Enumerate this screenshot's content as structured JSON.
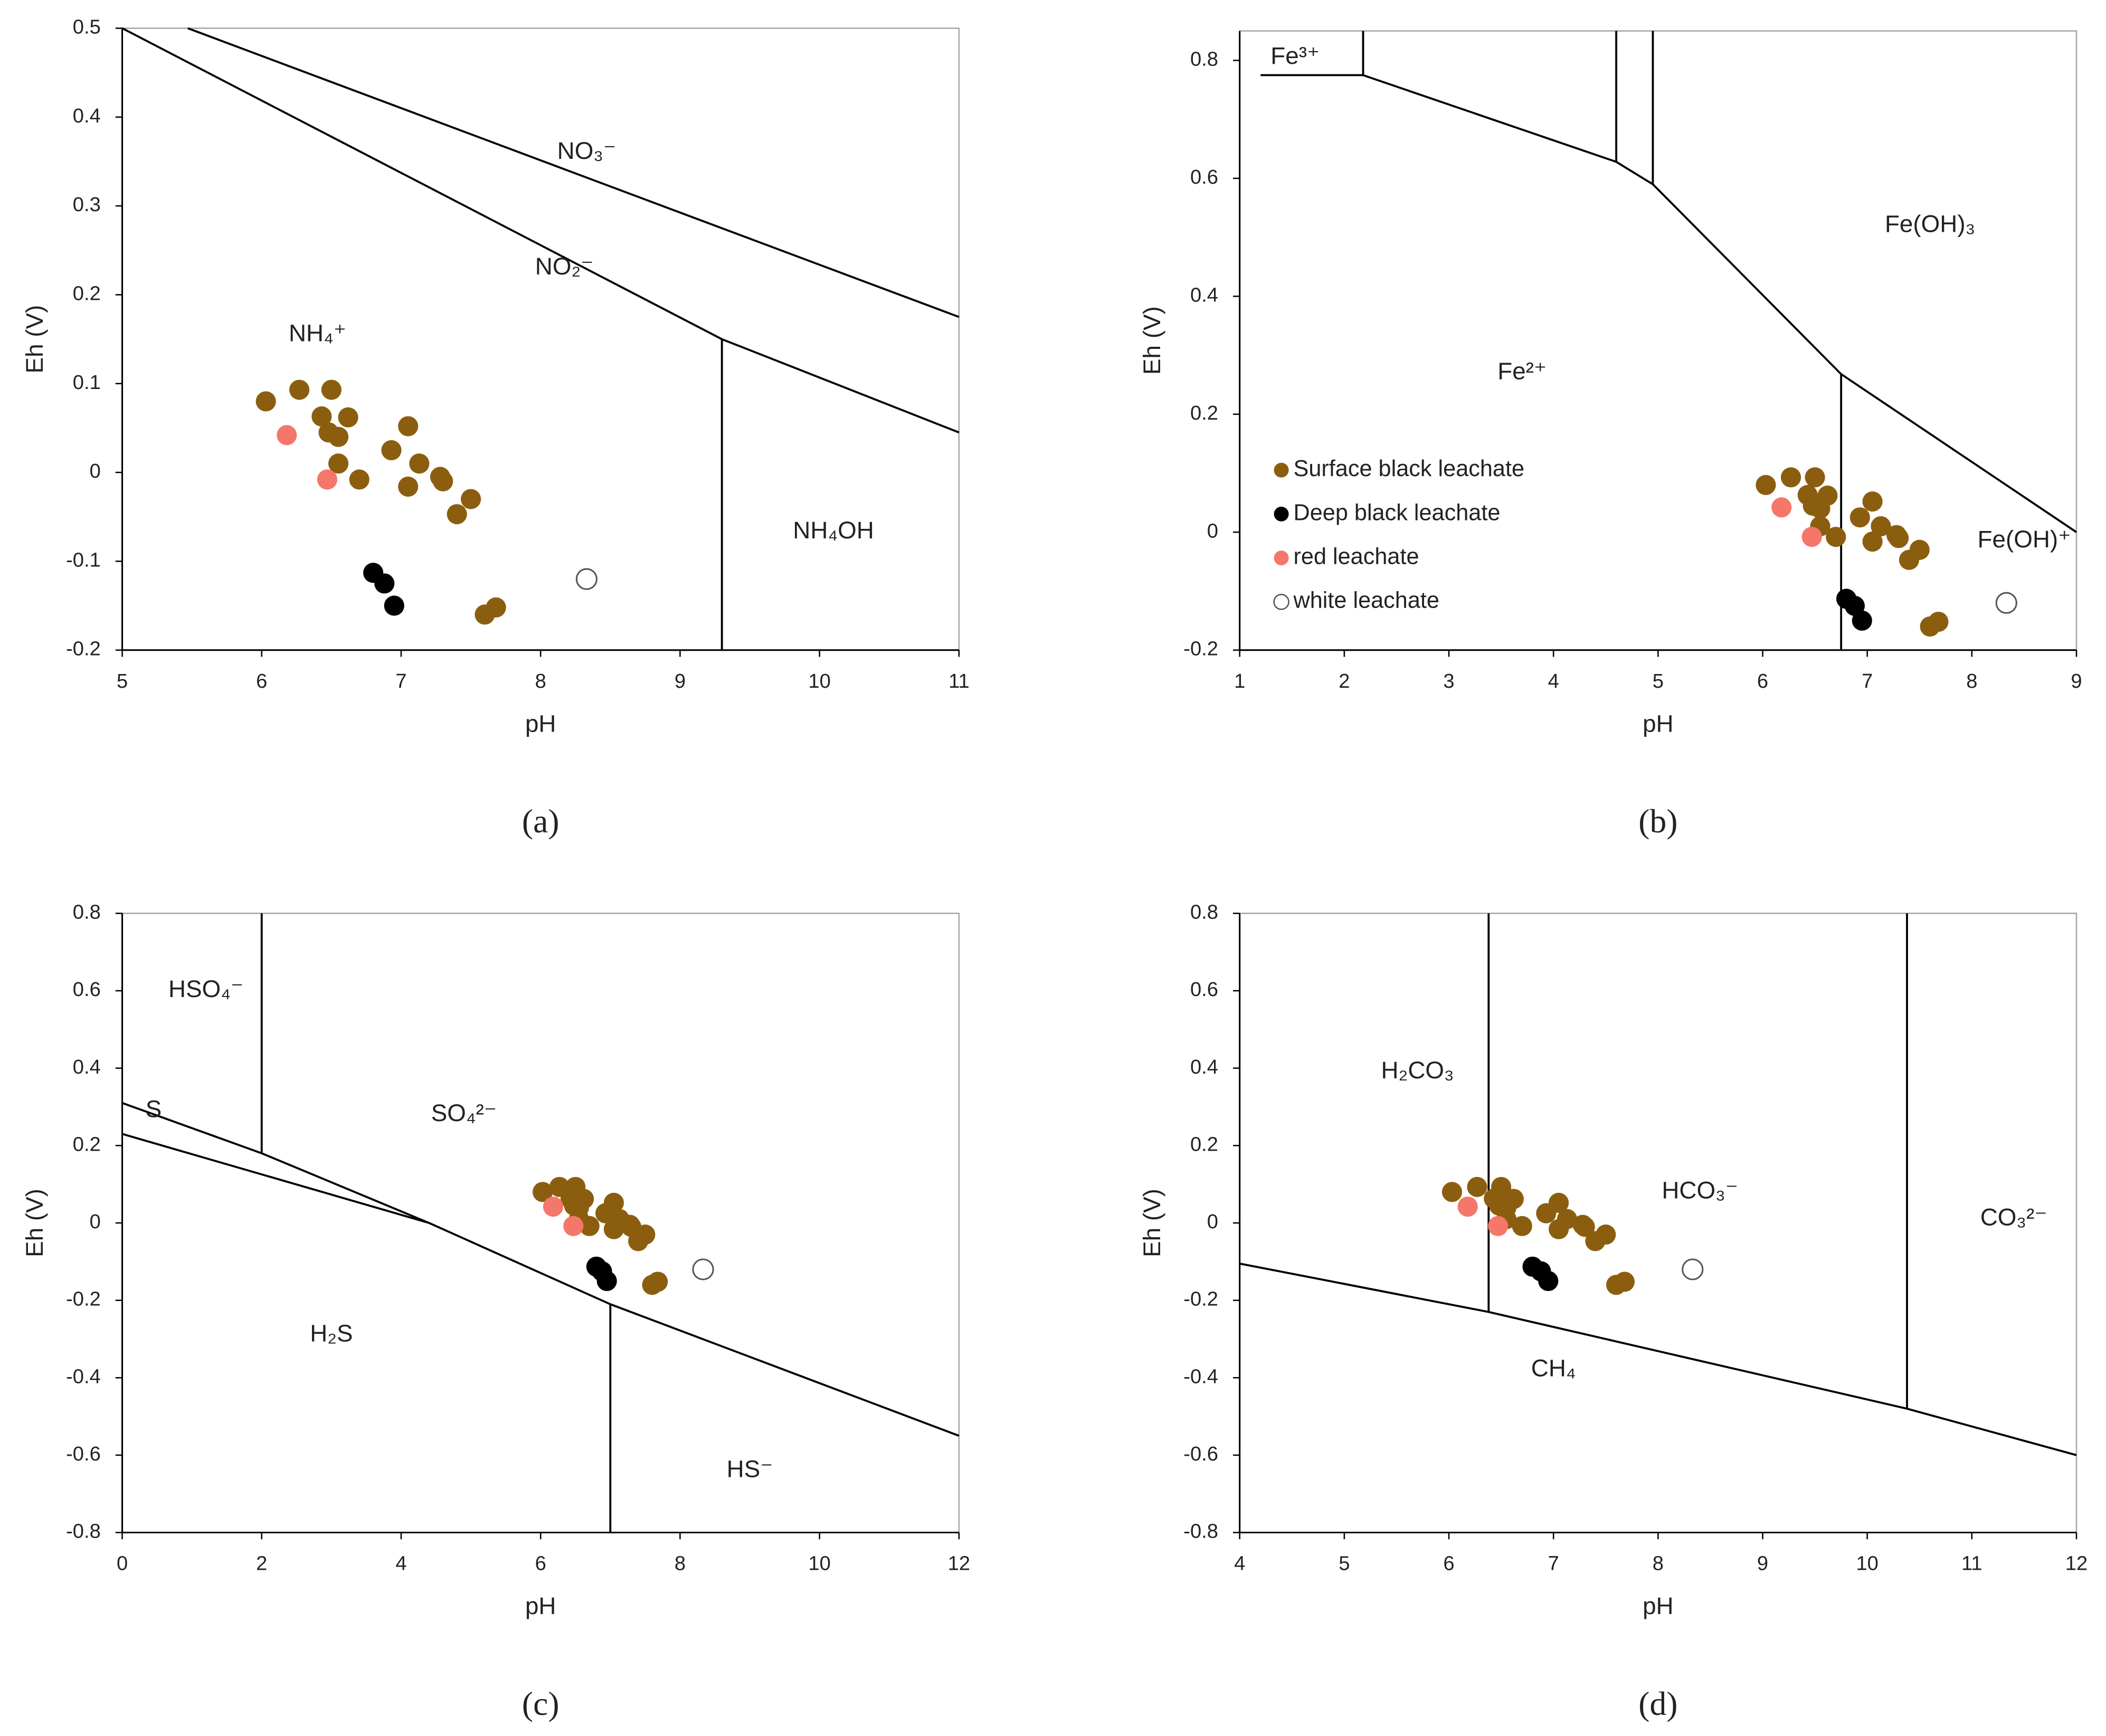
{
  "chart_data": [
    {
      "type": "scatter",
      "panel_label": "(a)",
      "xlabel": "pH",
      "ylabel": "Eh (V)",
      "xlim": [
        5,
        11
      ],
      "ylim": [
        -0.2,
        0.5
      ],
      "xticks": [
        5,
        6,
        7,
        8,
        9,
        10,
        11
      ],
      "yticks": [
        -0.2,
        -0.1,
        0,
        0.1,
        0.2,
        0.3,
        0.4,
        0.5
      ],
      "regions": [
        "NO₃⁻",
        "NO₂⁻",
        "NH₄⁺",
        "NH₄OH"
      ],
      "boundaries": [
        {
          "x": [
            5,
            9.3,
            11
          ],
          "y": [
            0.5,
            0.15,
            0.045
          ]
        },
        {
          "x": [
            5.47,
            11
          ],
          "y": [
            0.5,
            0.175
          ]
        },
        {
          "x": [
            9.3,
            9.3
          ],
          "y": [
            0.15,
            -0.2
          ]
        }
      ],
      "legend": false,
      "series": [
        {
          "name": "Surface black leachate",
          "color": "#8b5e0f",
          "x": [
            6.03,
            6.27,
            6.5,
            6.43,
            6.48,
            6.55,
            6.62,
            6.55,
            6.7,
            6.93,
            7.05,
            7.13,
            7.05,
            7.28,
            7.3,
            7.4,
            7.5,
            7.6,
            7.68
          ],
          "y": [
            0.08,
            0.093,
            0.093,
            0.063,
            0.045,
            0.04,
            0.062,
            0.01,
            -0.008,
            0.025,
            0.052,
            0.01,
            -0.016,
            -0.005,
            -0.01,
            -0.047,
            -0.03,
            -0.16,
            -0.152
          ]
        },
        {
          "name": "Deep black leachate",
          "color": "#000000",
          "x": [
            6.8,
            6.88,
            6.95
          ],
          "y": [
            -0.113,
            -0.125,
            -0.15
          ]
        },
        {
          "name": "red leachate",
          "color": "#f4776a",
          "x": [
            6.18,
            6.47
          ],
          "y": [
            0.042,
            -0.008
          ]
        },
        {
          "name": "white leachate",
          "color": "#ffffff",
          "x": [
            8.33
          ],
          "y": [
            -0.12
          ]
        }
      ]
    },
    {
      "type": "scatter",
      "panel_label": "(b)",
      "xlabel": "pH",
      "ylabel": "Eh (V)",
      "xlim": [
        1,
        9
      ],
      "ylim": [
        -0.2,
        0.85
      ],
      "xticks": [
        1,
        2,
        3,
        4,
        5,
        6,
        7,
        8,
        9
      ],
      "yticks": [
        -0.2,
        0,
        0.2,
        0.4,
        0.6,
        0.8
      ],
      "regions": [
        "Fe³⁺",
        "Fe(OH)₃",
        "Fe²⁺",
        "Fe(OH)⁺"
      ],
      "boundaries": [
        {
          "x": [
            1.2,
            2.18
          ],
          "y": [
            0.775,
            0.775
          ]
        },
        {
          "x": [
            2.18,
            2.18,
            4.6,
            4.95,
            6.75,
            9
          ],
          "y": [
            0.85,
            0.775,
            0.628,
            0.59,
            0.268,
            0
          ]
        },
        {
          "x": [
            4.6,
            4.6
          ],
          "y": [
            0.85,
            0.628
          ]
        },
        {
          "x": [
            4.95,
            4.95
          ],
          "y": [
            0.85,
            0.59
          ]
        },
        {
          "x": [
            6.75,
            6.75
          ],
          "y": [
            0.268,
            -0.2
          ]
        }
      ],
      "legend": true,
      "series": [
        {
          "name": "Surface black leachate",
          "color": "#8b5e0f",
          "x": [
            6.03,
            6.27,
            6.5,
            6.43,
            6.48,
            6.55,
            6.62,
            6.55,
            6.7,
            6.93,
            7.05,
            7.13,
            7.05,
            7.28,
            7.3,
            7.4,
            7.5,
            7.6,
            7.68
          ],
          "y": [
            0.08,
            0.093,
            0.093,
            0.063,
            0.045,
            0.04,
            0.062,
            0.01,
            -0.008,
            0.025,
            0.052,
            0.01,
            -0.016,
            -0.005,
            -0.01,
            -0.047,
            -0.03,
            -0.16,
            -0.152
          ]
        },
        {
          "name": "Deep black leachate",
          "color": "#000000",
          "x": [
            6.8,
            6.88,
            6.95
          ],
          "y": [
            -0.113,
            -0.125,
            -0.15
          ]
        },
        {
          "name": "red leachate",
          "color": "#f4776a",
          "x": [
            6.18,
            6.47
          ],
          "y": [
            0.042,
            -0.008
          ]
        },
        {
          "name": "white leachate",
          "color": "#ffffff",
          "x": [
            8.33
          ],
          "y": [
            -0.12
          ]
        }
      ]
    },
    {
      "type": "scatter",
      "panel_label": "(c)",
      "xlabel": "pH",
      "ylabel": "Eh (V)",
      "xlim": [
        0,
        12
      ],
      "ylim": [
        -0.8,
        0.8
      ],
      "xticks": [
        0,
        2,
        4,
        6,
        8,
        10,
        12
      ],
      "yticks": [
        -0.8,
        -0.6,
        -0.4,
        -0.2,
        0,
        0.2,
        0.4,
        0.6,
        0.8
      ],
      "regions": [
        "HSO₄⁻",
        "S",
        "SO₄²⁻",
        "H₂S",
        "HS⁻"
      ],
      "boundaries": [
        {
          "x": [
            0,
            2,
            4.4
          ],
          "y": [
            0.31,
            0.18,
            0
          ]
        },
        {
          "x": [
            0,
            4.4,
            7,
            12
          ],
          "y": [
            0.23,
            0,
            -0.21,
            -0.55
          ]
        },
        {
          "x": [
            2,
            2
          ],
          "y": [
            0.8,
            0.18
          ]
        },
        {
          "x": [
            7,
            7
          ],
          "y": [
            -0.21,
            -0.8
          ]
        }
      ],
      "legend": false,
      "series": [
        {
          "name": "Surface black leachate",
          "color": "#8b5e0f",
          "x": [
            6.03,
            6.27,
            6.5,
            6.43,
            6.48,
            6.55,
            6.62,
            6.55,
            6.7,
            6.93,
            7.05,
            7.13,
            7.05,
            7.28,
            7.3,
            7.4,
            7.5,
            7.6,
            7.68
          ],
          "y": [
            0.08,
            0.093,
            0.093,
            0.063,
            0.045,
            0.04,
            0.062,
            0.01,
            -0.008,
            0.025,
            0.052,
            0.01,
            -0.016,
            -0.005,
            -0.01,
            -0.047,
            -0.03,
            -0.16,
            -0.152
          ]
        },
        {
          "name": "Deep black leachate",
          "color": "#000000",
          "x": [
            6.8,
            6.88,
            6.95
          ],
          "y": [
            -0.113,
            -0.125,
            -0.15
          ]
        },
        {
          "name": "red leachate",
          "color": "#f4776a",
          "x": [
            6.18,
            6.47
          ],
          "y": [
            0.042,
            -0.008
          ]
        },
        {
          "name": "white leachate",
          "color": "#ffffff",
          "x": [
            8.33
          ],
          "y": [
            -0.12
          ]
        }
      ]
    },
    {
      "type": "scatter",
      "panel_label": "(d)",
      "xlabel": "pH",
      "ylabel": "Eh (V)",
      "xlim": [
        4,
        12
      ],
      "ylim": [
        -0.8,
        0.8
      ],
      "xticks": [
        4,
        5,
        6,
        7,
        8,
        9,
        10,
        11,
        12
      ],
      "yticks": [
        -0.8,
        -0.6,
        -0.4,
        -0.2,
        0,
        0.2,
        0.4,
        0.6,
        0.8
      ],
      "regions": [
        "H₂CO₃",
        "HCO₃⁻",
        "CO₃²⁻",
        "CH₄"
      ],
      "boundaries": [
        {
          "x": [
            4,
            6.38,
            10.38,
            12
          ],
          "y": [
            -0.105,
            -0.23,
            -0.48,
            -0.6
          ]
        },
        {
          "x": [
            6.38,
            6.38
          ],
          "y": [
            0.8,
            -0.23
          ]
        },
        {
          "x": [
            10.38,
            10.38
          ],
          "y": [
            0.8,
            -0.48
          ]
        }
      ],
      "legend": false,
      "series": [
        {
          "name": "Surface black leachate",
          "color": "#8b5e0f",
          "x": [
            6.03,
            6.27,
            6.5,
            6.43,
            6.48,
            6.55,
            6.62,
            6.55,
            6.7,
            6.93,
            7.05,
            7.13,
            7.05,
            7.28,
            7.3,
            7.4,
            7.5,
            7.6,
            7.68
          ],
          "y": [
            0.08,
            0.093,
            0.093,
            0.063,
            0.045,
            0.04,
            0.062,
            0.01,
            -0.008,
            0.025,
            0.052,
            0.01,
            -0.016,
            -0.005,
            -0.01,
            -0.047,
            -0.03,
            -0.16,
            -0.152
          ]
        },
        {
          "name": "Deep black leachate",
          "color": "#000000",
          "x": [
            6.8,
            6.88,
            6.95
          ],
          "y": [
            -0.113,
            -0.125,
            -0.15
          ]
        },
        {
          "name": "red leachate",
          "color": "#f4776a",
          "x": [
            6.18,
            6.47
          ],
          "y": [
            0.042,
            -0.008
          ]
        },
        {
          "name": "white leachate",
          "color": "#ffffff",
          "x": [
            8.33
          ],
          "y": [
            -0.12
          ]
        }
      ]
    }
  ]
}
